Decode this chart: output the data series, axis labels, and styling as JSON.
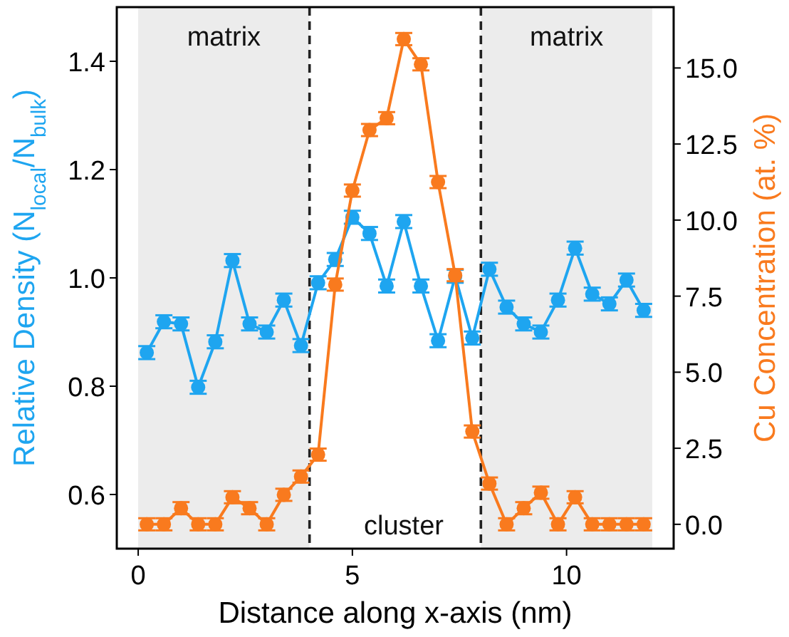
{
  "chart_data": {
    "type": "line",
    "xlabel": "Distance along x-axis (nm)",
    "ylabel": "Relative Density (N$_{local}$/N$_{bulk}$)",
    "y2label": "Cu Concentration (at. %)",
    "x": [
      0.2,
      0.6,
      1.0,
      1.4,
      1.8,
      2.2,
      2.6,
      3.0,
      3.4,
      3.8,
      4.2,
      4.6,
      5.0,
      5.4,
      5.8,
      6.2,
      6.6,
      7.0,
      7.4,
      7.8,
      8.2,
      8.6,
      9.0,
      9.4,
      9.8,
      10.2,
      10.6,
      11.0,
      11.4,
      11.8
    ],
    "series": [
      {
        "color": "#1ea5f0",
        "values": [
          0.862,
          0.919,
          0.915,
          0.798,
          0.882,
          1.032,
          0.915,
          0.9,
          0.959,
          0.875,
          0.991,
          1.034,
          1.112,
          1.082,
          0.985,
          1.104,
          0.985,
          0.884,
          1.003,
          0.889,
          1.016,
          0.946,
          0.915,
          0.9,
          0.959,
          1.055,
          0.97,
          0.952,
          0.996,
          0.94
        ],
        "errors": [
          0.012,
          0.012,
          0.012,
          0.012,
          0.012,
          0.012,
          0.012,
          0.012,
          0.012,
          0.012,
          0.012,
          0.012,
          0.012,
          0.012,
          0.012,
          0.012,
          0.012,
          0.012,
          0.012,
          0.012,
          0.012,
          0.012,
          0.012,
          0.012,
          0.012,
          0.012,
          0.012,
          0.012,
          0.012,
          0.012
        ]
      },
      {
        "color": "#f97a1e",
        "axis": "y2",
        "values": [
          0,
          0,
          0.53,
          0,
          0,
          0.89,
          0.53,
          0,
          0.97,
          1.57,
          2.29,
          7.88,
          10.97,
          12.96,
          13.35,
          15.95,
          15.12,
          11.25,
          8.19,
          3.05,
          1.34,
          0,
          0.53,
          1.04,
          0,
          0.89,
          0,
          0,
          0,
          0
        ],
        "errors": [
          0.2,
          0.2,
          0.2,
          0.2,
          0.2,
          0.2,
          0.2,
          0.2,
          0.2,
          0.2,
          0.2,
          0.2,
          0.2,
          0.2,
          0.2,
          0.2,
          0.2,
          0.2,
          0.2,
          0.2,
          0.2,
          0.2,
          0.2,
          0.2,
          0.2,
          0.2,
          0.2,
          0.2,
          0.2,
          0.2
        ]
      }
    ],
    "xlim": [
      -0.5,
      12.5
    ],
    "xticks": [
      0,
      5,
      10
    ],
    "ylim": [
      0.5,
      1.5
    ],
    "yticks": [
      0.6,
      0.8,
      {
        "value": 1,
        "label": "1.0"
      },
      1.2,
      1.4
    ],
    "y2lim": [
      -0.8,
      17
    ],
    "y2ticks": [
      {
        "value": 0,
        "label": "0.0"
      },
      2.5,
      {
        "value": 5,
        "label": "5.0"
      },
      7.5,
      {
        "value": 10,
        "label": "10.0"
      },
      12.5,
      {
        "value": 15,
        "label": "15.0"
      }
    ],
    "bands": [
      {
        "axis": "x",
        "from": 0,
        "to": 4,
        "label": "matrix",
        "color": "#ececec"
      },
      {
        "axis": "x",
        "from": 8,
        "to": 12,
        "label": "matrix",
        "color": "#ececec"
      }
    ],
    "ref_lines": [
      {
        "axis": "x",
        "value": 4,
        "line_style": "dashed",
        "color": "#222222"
      },
      {
        "axis": "x",
        "value": 8,
        "line_style": "dashed",
        "color": "#222222"
      }
    ],
    "annotations": [
      "cluster"
    ],
    "marker": "circle",
    "line_style": "solid",
    "grid": false
  }
}
